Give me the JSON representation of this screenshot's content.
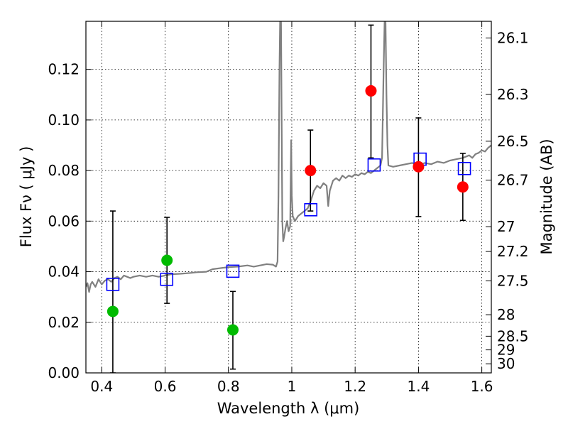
{
  "chart_data": {
    "type": "scatter",
    "xlabel": "Wavelength  λ (μm)",
    "ylabel": "Flux  Fν  ( μJy )",
    "ylabel_right": "Magnitude (AB)",
    "xlim": [
      0.35,
      1.63
    ],
    "ylim": [
      0.0,
      0.139
    ],
    "grid": true,
    "x_ticks": [
      0.4,
      0.6,
      0.8,
      1.0,
      1.2,
      1.4,
      1.6
    ],
    "x_tick_labels": [
      "0.4",
      "0.6",
      "0.8",
      "1",
      "1.2",
      "1.4",
      "1.6"
    ],
    "y_ticks": [
      0.0,
      0.02,
      0.04,
      0.06,
      0.08,
      0.1,
      0.12
    ],
    "y_tick_labels": [
      "0.00",
      "0.02",
      "0.04",
      "0.06",
      "0.08",
      "0.10",
      "0.12"
    ],
    "mag_ticks": [
      {
        "label": "26.1",
        "flux": 0.1324
      },
      {
        "label": "26.3",
        "flux": 0.1101
      },
      {
        "label": "26.5",
        "flux": 0.0916
      },
      {
        "label": "26.7",
        "flux": 0.0762
      },
      {
        "label": "27",
        "flux": 0.0578
      },
      {
        "label": "27.2",
        "flux": 0.048
      },
      {
        "label": "27.5",
        "flux": 0.0364
      },
      {
        "label": "28",
        "flux": 0.023
      },
      {
        "label": "28.5",
        "flux": 0.0145
      },
      {
        "label": "29",
        "flux": 0.0091
      },
      {
        "label": "30",
        "flux": 0.0036
      }
    ],
    "series": [
      {
        "kind": "spectrum",
        "color": "#808080",
        "points": [
          [
            0.35,
            0.034
          ],
          [
            0.355,
            0.0355
          ],
          [
            0.36,
            0.032
          ],
          [
            0.365,
            0.035
          ],
          [
            0.37,
            0.036
          ],
          [
            0.38,
            0.034
          ],
          [
            0.39,
            0.037
          ],
          [
            0.4,
            0.035
          ],
          [
            0.41,
            0.0365
          ],
          [
            0.42,
            0.037
          ],
          [
            0.43,
            0.036
          ],
          [
            0.44,
            0.0375
          ],
          [
            0.45,
            0.038
          ],
          [
            0.46,
            0.037
          ],
          [
            0.47,
            0.0385
          ],
          [
            0.48,
            0.038
          ],
          [
            0.49,
            0.0375
          ],
          [
            0.5,
            0.038
          ],
          [
            0.52,
            0.0385
          ],
          [
            0.54,
            0.038
          ],
          [
            0.56,
            0.0385
          ],
          [
            0.58,
            0.038
          ],
          [
            0.6,
            0.0385
          ],
          [
            0.62,
            0.039
          ],
          [
            0.65,
            0.0392
          ],
          [
            0.68,
            0.0395
          ],
          [
            0.7,
            0.0398
          ],
          [
            0.73,
            0.04
          ],
          [
            0.75,
            0.041
          ],
          [
            0.78,
            0.0415
          ],
          [
            0.8,
            0.0418
          ],
          [
            0.83,
            0.042
          ],
          [
            0.86,
            0.0425
          ],
          [
            0.88,
            0.042
          ],
          [
            0.9,
            0.0425
          ],
          [
            0.92,
            0.043
          ],
          [
            0.94,
            0.0428
          ],
          [
            0.95,
            0.042
          ],
          [
            0.955,
            0.044
          ],
          [
            0.958,
            0.07
          ],
          [
            0.961,
            0.12
          ],
          [
            0.963,
            0.139
          ],
          [
            0.966,
            0.139
          ],
          [
            0.968,
            0.1
          ],
          [
            0.97,
            0.06
          ],
          [
            0.973,
            0.052
          ],
          [
            0.976,
            0.054
          ],
          [
            0.98,
            0.057
          ],
          [
            0.985,
            0.06
          ],
          [
            0.99,
            0.056
          ],
          [
            0.995,
            0.058
          ],
          [
            0.998,
            0.092
          ],
          [
            1.0,
            0.07
          ],
          [
            1.003,
            0.062
          ],
          [
            1.01,
            0.06
          ],
          [
            1.02,
            0.062
          ],
          [
            1.03,
            0.063
          ],
          [
            1.04,
            0.064
          ],
          [
            1.05,
            0.065
          ],
          [
            1.06,
            0.068
          ],
          [
            1.07,
            0.072
          ],
          [
            1.08,
            0.074
          ],
          [
            1.09,
            0.073
          ],
          [
            1.1,
            0.075
          ],
          [
            1.11,
            0.074
          ],
          [
            1.115,
            0.066
          ],
          [
            1.12,
            0.072
          ],
          [
            1.13,
            0.076
          ],
          [
            1.14,
            0.077
          ],
          [
            1.15,
            0.076
          ],
          [
            1.16,
            0.078
          ],
          [
            1.17,
            0.077
          ],
          [
            1.18,
            0.078
          ],
          [
            1.19,
            0.0775
          ],
          [
            1.2,
            0.0785
          ],
          [
            1.21,
            0.078
          ],
          [
            1.22,
            0.079
          ],
          [
            1.23,
            0.0785
          ],
          [
            1.24,
            0.0795
          ],
          [
            1.25,
            0.079
          ],
          [
            1.26,
            0.08
          ],
          [
            1.27,
            0.081
          ],
          [
            1.28,
            0.082
          ],
          [
            1.285,
            0.085
          ],
          [
            1.29,
            0.12
          ],
          [
            1.293,
            0.139
          ],
          [
            1.296,
            0.139
          ],
          [
            1.299,
            0.11
          ],
          [
            1.302,
            0.09
          ],
          [
            1.305,
            0.082
          ],
          [
            1.32,
            0.0815
          ],
          [
            1.34,
            0.082
          ],
          [
            1.36,
            0.0825
          ],
          [
            1.38,
            0.083
          ],
          [
            1.4,
            0.082
          ],
          [
            1.42,
            0.083
          ],
          [
            1.44,
            0.0825
          ],
          [
            1.46,
            0.0835
          ],
          [
            1.48,
            0.083
          ],
          [
            1.5,
            0.084
          ],
          [
            1.52,
            0.0845
          ],
          [
            1.54,
            0.085
          ],
          [
            1.56,
            0.086
          ],
          [
            1.57,
            0.085
          ],
          [
            1.58,
            0.0865
          ],
          [
            1.59,
            0.087
          ],
          [
            1.6,
            0.088
          ],
          [
            1.61,
            0.0875
          ],
          [
            1.62,
            0.089
          ],
          [
            1.63,
            0.09
          ]
        ]
      },
      {
        "kind": "model-squares",
        "color": "#0000ff",
        "points": [
          {
            "x": 0.435,
            "y": 0.035
          },
          {
            "x": 0.605,
            "y": 0.037
          },
          {
            "x": 0.814,
            "y": 0.0402
          },
          {
            "x": 1.06,
            "y": 0.0645
          },
          {
            "x": 1.26,
            "y": 0.0822
          },
          {
            "x": 1.405,
            "y": 0.0845
          },
          {
            "x": 1.545,
            "y": 0.0808
          }
        ]
      },
      {
        "kind": "observed-green",
        "color": "#00bb00",
        "points": [
          {
            "x": 0.435,
            "y": 0.0243,
            "ylo": 0.0,
            "yhi": 0.064
          },
          {
            "x": 0.606,
            "y": 0.0445,
            "ylo": 0.0275,
            "yhi": 0.0615
          },
          {
            "x": 0.814,
            "y": 0.017,
            "ylo": 0.0015,
            "yhi": 0.0322
          }
        ]
      },
      {
        "kind": "observed-red",
        "color": "#ff0000",
        "points": [
          {
            "x": 1.059,
            "y": 0.08,
            "ylo": 0.064,
            "yhi": 0.096
          },
          {
            "x": 1.25,
            "y": 0.1115,
            "ylo": 0.085,
            "yhi": 0.1375
          },
          {
            "x": 1.4,
            "y": 0.0815,
            "ylo": 0.0618,
            "yhi": 0.1008
          },
          {
            "x": 1.54,
            "y": 0.0735,
            "ylo": 0.0603,
            "yhi": 0.0868
          }
        ]
      }
    ]
  }
}
